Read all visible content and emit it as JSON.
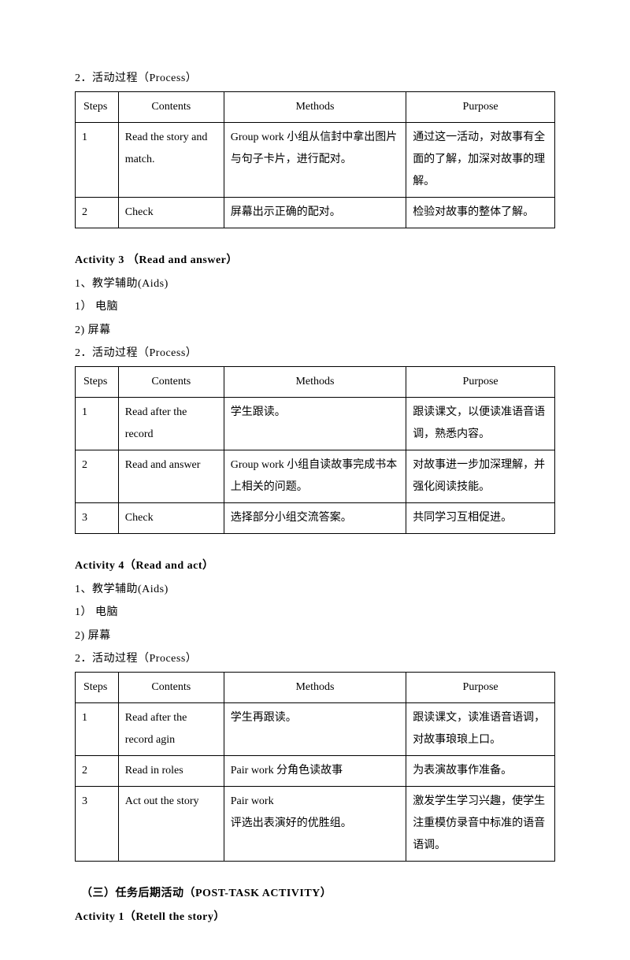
{
  "section1": {
    "heading": "2．活动过程（Process）",
    "table": {
      "headers": [
        "Steps",
        "Contents",
        "Methods",
        "Purpose"
      ],
      "rows": [
        [
          "1",
          "Read the story and match.",
          "Group work  小组从信封中拿出图片与句子卡片，进行配对。",
          "通过这一活动，对故事有全面的了解，加深对故事的理解。"
        ],
        [
          "2",
          "Check",
          "屏幕出示正确的配对。",
          "检验对故事的整体了解。"
        ]
      ]
    }
  },
  "activity3": {
    "title": "Activity 3 （Read and answer）",
    "aids_heading": "1、教学辅助(Aids)",
    "aid1": "1） 电脑",
    "aid2": "2) 屏幕",
    "process_heading": "2．活动过程（Process）",
    "table": {
      "headers": [
        "Steps",
        "Contents",
        "Methods",
        "Purpose"
      ],
      "rows": [
        [
          "1",
          "Read after the record",
          " 学生跟读。",
          " 跟读课文，以便读准语音语调，熟悉内容。"
        ],
        [
          "2",
          "Read and answer",
          "Group work 小组自读故事完成书本上相关的问题。",
          "对故事进一步加深理解，并强化阅读技能。"
        ],
        [
          "3",
          "Check",
          "选择部分小组交流答案。",
          "共同学习互相促进。"
        ]
      ]
    }
  },
  "activity4": {
    "title": "Activity 4（Read and act）",
    "aids_heading": "1、教学辅助(Aids)",
    "aid1": "1） 电脑",
    "aid2": "2) 屏幕",
    "process_heading": "2．活动过程（Process）",
    "table": {
      "headers": [
        "Steps",
        "Contents",
        "Methods",
        "Purpose"
      ],
      "rows": [
        [
          "1",
          "Read after the record agin",
          " 学生再跟读。",
          " 跟读课文，读准语音语调，对故事琅琅上口。"
        ],
        [
          "2",
          "Read in roles",
          " Pair work 分角色读故事",
          "为表演故事作准备。"
        ],
        [
          "3",
          "Act out the story",
          " Pair work\n评选出表演好的优胜组。",
          "激发学生学习兴趣，使学生注重模仿录音中标准的语音语调。"
        ]
      ]
    }
  },
  "posttask": {
    "title": "（三）任务后期活动（POST-TASK ACTIVITY）",
    "activity1": "Activity 1（Retell the story）"
  }
}
